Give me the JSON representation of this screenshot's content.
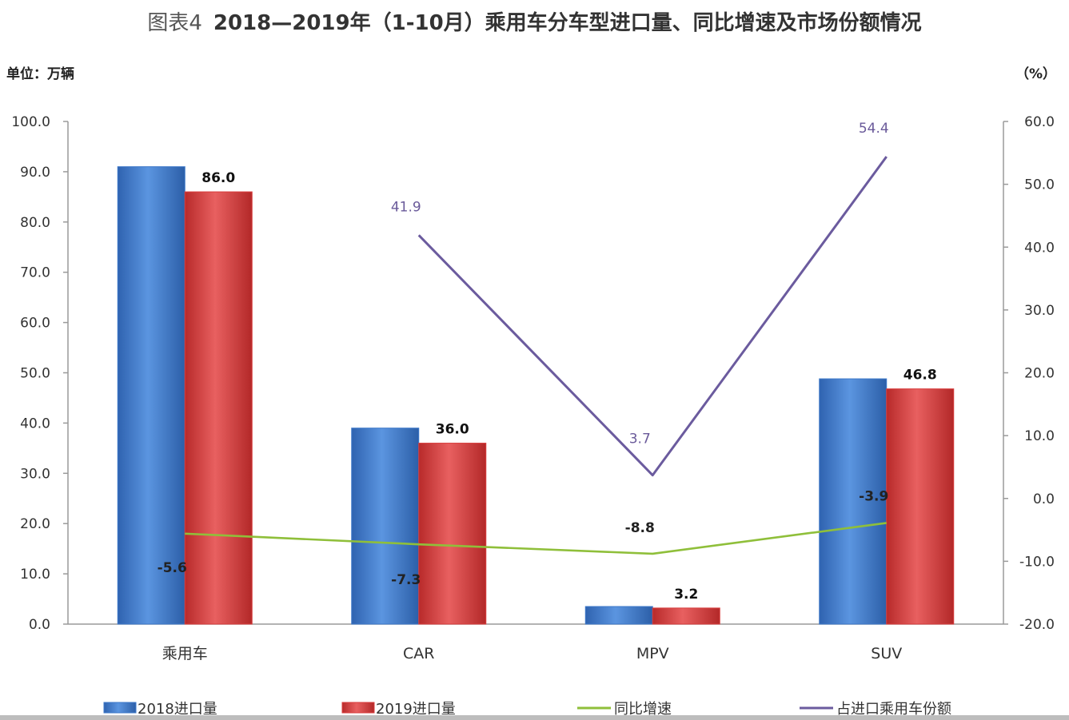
{
  "title_prefix": "图表4",
  "title_main": "2018—2019年（1-10月）乘用车分车型进口量、同比增速及市场份额情况",
  "unit_left": "单位：万辆",
  "unit_right": "（%）",
  "colors": {
    "bar2018": "#3d78c9",
    "bar2019": "#d83c3c",
    "growth": "#8fbf3a",
    "share": "#6b5b9e"
  },
  "chart_data": {
    "type": "bar",
    "categories": [
      "乘用车",
      "CAR",
      "MPV",
      "SUV"
    ],
    "y_left": {
      "min": 0,
      "max": 100,
      "step": 10,
      "ticks": [
        "0.0",
        "10.0",
        "20.0",
        "30.0",
        "40.0",
        "50.0",
        "60.0",
        "70.0",
        "80.0",
        "90.0",
        "100.0"
      ]
    },
    "y_right": {
      "min": -20,
      "max": 60,
      "step": 10,
      "ticks": [
        "-20.0",
        "-10.0",
        "0.0",
        "10.0",
        "20.0",
        "30.0",
        "40.0",
        "50.0",
        "60.0"
      ]
    },
    "series": [
      {
        "name": "2018进口量",
        "kind": "bar",
        "axis": "left",
        "values": [
          91.0,
          39.0,
          3.5,
          48.8
        ]
      },
      {
        "name": "2019进口量",
        "kind": "bar",
        "axis": "left",
        "values": [
          86.0,
          36.0,
          3.2,
          46.8
        ],
        "labels": [
          "86.0",
          "36.0",
          "3.2",
          "46.8"
        ]
      },
      {
        "name": "同比增速",
        "kind": "line",
        "axis": "right",
        "values": [
          -5.6,
          -7.3,
          -8.8,
          -3.9
        ],
        "labels": [
          "-5.6",
          "-7.3",
          "-8.8",
          "-3.9"
        ]
      },
      {
        "name": "占进口乘用车份额",
        "kind": "line",
        "axis": "right",
        "values": [
          null,
          41.9,
          3.7,
          54.4
        ],
        "labels": [
          "",
          "41.9",
          "3.7",
          "54.4"
        ]
      }
    ],
    "legend": [
      "2018进口量",
      "2019进口量",
      "同比增速",
      "占进口乘用车份额"
    ],
    "legend_position": "bottom",
    "grid": false
  }
}
